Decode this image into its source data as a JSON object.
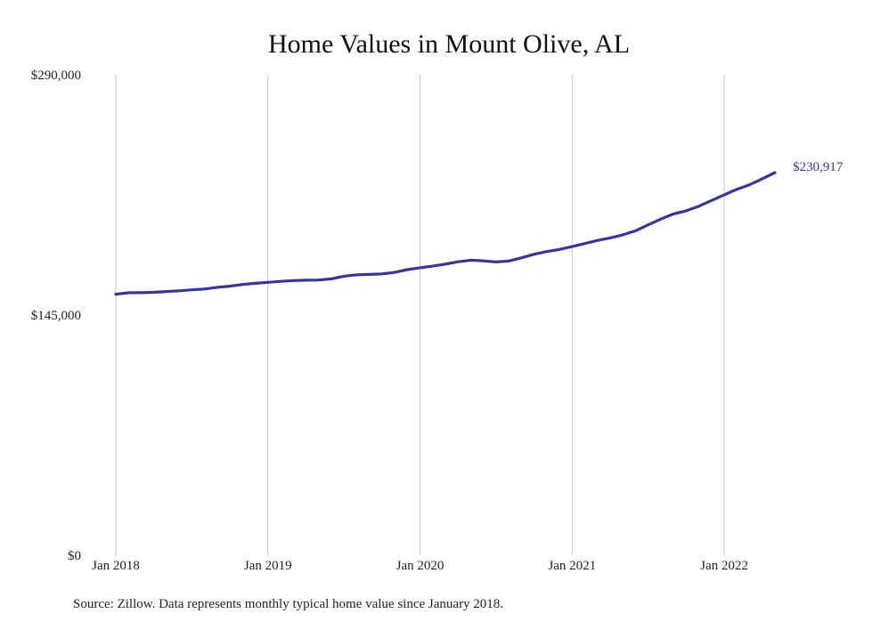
{
  "footer": {
    "source": "Source: Zillow. Data represents monthly typical home value since January 2018."
  },
  "colors": {
    "line": "#3a3593",
    "grid": "#c8c8c8",
    "background": "#ffffff"
  },
  "chart_data": {
    "type": "line",
    "title": "Home Values in Mount Olive, AL",
    "xlabel": "",
    "ylabel": "",
    "ylim": [
      0,
      290000
    ],
    "grid": "vertical",
    "y_ticks": [
      {
        "value": 0,
        "label": "$0"
      },
      {
        "value": 145000,
        "label": "$145,000"
      },
      {
        "value": 290000,
        "label": "$290,000"
      }
    ],
    "x_ticks": [
      {
        "value": "2018-01",
        "label": "Jan 2018"
      },
      {
        "value": "2019-01",
        "label": "Jan 2019"
      },
      {
        "value": "2020-01",
        "label": "Jan 2020"
      },
      {
        "value": "2021-01",
        "label": "Jan 2021"
      },
      {
        "value": "2022-01",
        "label": "Jan 2022"
      }
    ],
    "end_label": "$230,917",
    "series": [
      {
        "x": [
          "2018-01",
          "2018-02",
          "2018-03",
          "2018-04",
          "2018-05",
          "2018-06",
          "2018-07",
          "2018-08",
          "2018-09",
          "2018-10",
          "2018-11",
          "2018-12",
          "2019-01",
          "2019-02",
          "2019-03",
          "2019-04",
          "2019-05",
          "2019-06",
          "2019-07",
          "2019-08",
          "2019-09",
          "2019-10",
          "2019-11",
          "2019-12",
          "2020-01",
          "2020-02",
          "2020-03",
          "2020-04",
          "2020-05",
          "2020-06",
          "2020-07",
          "2020-08",
          "2020-09",
          "2020-10",
          "2020-11",
          "2020-12",
          "2021-01",
          "2021-02",
          "2021-03",
          "2021-04",
          "2021-05",
          "2021-06",
          "2021-07",
          "2021-08",
          "2021-09",
          "2021-10",
          "2021-11",
          "2021-12",
          "2022-01",
          "2022-02",
          "2022-03",
          "2022-04",
          "2022-05"
        ],
        "values": [
          157500,
          158400,
          158500,
          158700,
          159200,
          159600,
          160200,
          160700,
          161700,
          162400,
          163400,
          164100,
          164700,
          165300,
          165800,
          166000,
          166100,
          166800,
          168400,
          169300,
          169500,
          169800,
          170700,
          172400,
          173500,
          174500,
          175700,
          177100,
          178100,
          177700,
          177000,
          177600,
          179500,
          181700,
          183300,
          184600,
          186300,
          188100,
          190000,
          191500,
          193400,
          195800,
          199400,
          202900,
          206000,
          207900,
          210700,
          214100,
          217500,
          220900,
          223600,
          227200,
          230917
        ]
      }
    ]
  }
}
